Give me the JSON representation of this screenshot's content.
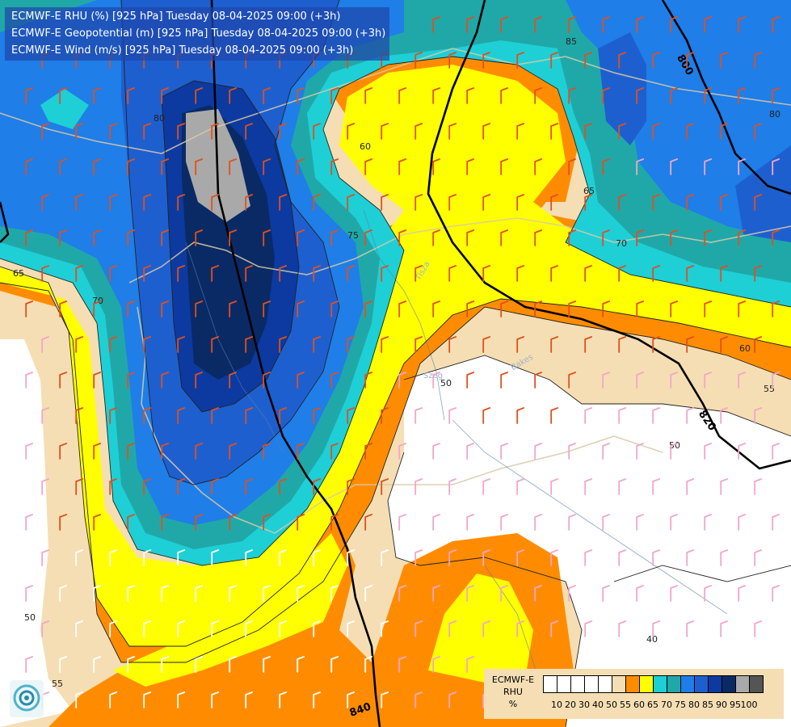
{
  "title_lines": [
    "ECMWF-E RHU (%) [925 hPa] Tuesday 08-04-2025 09:00 (+3h)",
    "ECMWF-E Geopotential (m) [925 hPa] Tuesday 08-04-2025 09:00 (+3h)",
    "ECMWF-E Wind (m/s) [925 hPa] Tuesday 08-04-2025 09:00 (+3h)"
  ],
  "legend": {
    "label_lines": [
      "ECMWF-E",
      "RHU",
      "%"
    ],
    "swatch_colors": [
      "#ffffff",
      "#ffffff",
      "#ffffff",
      "#ffffff",
      "#ffffff",
      "#f5deb3",
      "#ff8c00",
      "#ffff00",
      "#1ecfd6",
      "#20a8a8",
      "#1f7ee8",
      "#1e5fd0",
      "#0c3aa0",
      "#0a2a66",
      "#a9a9a9",
      "#555555"
    ],
    "ticks": [
      "10",
      "20",
      "30",
      "40",
      "50",
      "55",
      "60",
      "65",
      "70",
      "75",
      "80",
      "85",
      "90",
      "95",
      "100"
    ]
  },
  "geopotential_labels": [
    "800",
    "820",
    "840"
  ],
  "rhu_contour_labels": [
    "60",
    "65",
    "70",
    "75",
    "80",
    "85",
    "60",
    "55",
    "50",
    "50",
    "40",
    "50",
    "55",
    "65",
    "70",
    "80"
  ],
  "place_labels": [
    "Tisza",
    "Bakes",
    "Szeg"
  ],
  "colors": {
    "rhu_50": "#f5deb3",
    "rhu_60": "#ff8c00",
    "rhu_65": "#ffff00",
    "rhu_70": "#1ecfd6",
    "rhu_75": "#20a8a8",
    "rhu_80": "#1f7ee8",
    "rhu_85": "#1e5fd0",
    "rhu_90": "#0c3aa0",
    "rhu_95": "#0a2a66",
    "rhu_100": "#a9a9a9",
    "title_bg": "#1e46aa"
  }
}
